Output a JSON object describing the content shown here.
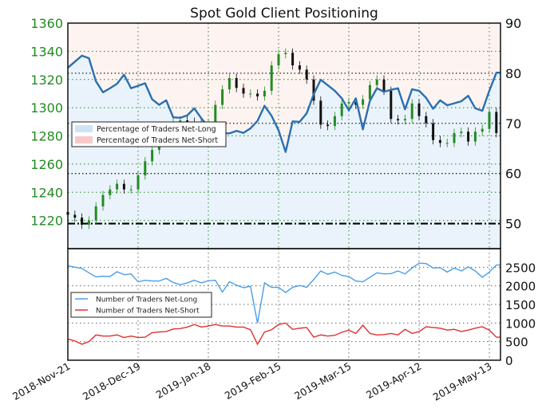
{
  "chart_data": [
    {
      "panel": "top",
      "type": "line+candlestick",
      "title": "Spot Gold Client Positioning",
      "x_tick_labels": [
        "2018-Nov-21",
        "2018-Dec-19",
        "2019-Jan-18",
        "2019-Feb-15",
        "2019-Mar-15",
        "2019-Apr-12",
        "2019-May-13"
      ],
      "x_tick_every_n_samples": 10,
      "sample_interval_sessions": 2,
      "left_axis": {
        "ticks": [
          1220,
          1240,
          1260,
          1280,
          1300,
          1320,
          1340,
          1360
        ],
        "ylim": [
          1200,
          1360
        ],
        "color": "#228b22"
      },
      "right_axis": {
        "ticks": [
          50,
          60,
          70,
          80,
          90
        ],
        "ylim": [
          45,
          90
        ]
      },
      "reference_lines_right_axis": [
        60,
        70,
        80
      ],
      "baseline_right_axis": 50,
      "legend": {
        "placement": "center-left",
        "entries": [
          {
            "label": "Percentage of Traders Net-Long",
            "color": "#cfe3f7"
          },
          {
            "label": "Percentage of Traders Net-Short",
            "color": "#f7c9c9"
          }
        ]
      },
      "percent_net_long": [
        81.1,
        82.3,
        83.5,
        83.0,
        78.4,
        76.2,
        77.0,
        77.9,
        79.7,
        77.0,
        77.5,
        78.0,
        74.8,
        73.7,
        74.6,
        71.2,
        71.1,
        71.6,
        73.0,
        71.0,
        69.4,
        68.5,
        68.0,
        68.0,
        68.5,
        68.1,
        69.0,
        70.5,
        73.5,
        71.5,
        68.6,
        64.3,
        70.4,
        70.3,
        72.0,
        75.8,
        78.7,
        77.6,
        76.5,
        75.0,
        72.6,
        75.0,
        68.8,
        74.5,
        77.0,
        76.3,
        76.7,
        77.0,
        72.8,
        76.8,
        76.5,
        75.1,
        72.9,
        74.6,
        73.6,
        74.0,
        74.4,
        75.5,
        73.0,
        72.5,
        76.5,
        80.1
      ],
      "price_close": [
        1224,
        1222,
        1217,
        1220,
        1230,
        1238,
        1242,
        1246,
        1242,
        1242,
        1252,
        1262,
        1270,
        1276,
        1285,
        1290,
        1291,
        1290,
        1289,
        1288,
        1289,
        1302,
        1313,
        1321,
        1314,
        1310,
        1310,
        1308,
        1312,
        1330,
        1338,
        1339,
        1330,
        1327,
        1320,
        1305,
        1288,
        1287,
        1294,
        1303,
        1304,
        1302,
        1306,
        1316,
        1320,
        1312,
        1292,
        1291,
        1292,
        1303,
        1294,
        1289,
        1277,
        1275,
        1275,
        1282,
        1283,
        1276,
        1283,
        1285,
        1297,
        1282
      ],
      "colors": {
        "line": "#2a6fb0",
        "up": "#228b22",
        "down": "#111111",
        "net_long_fill": "#eaf3fb",
        "net_short_fill": "#fdf3f1"
      }
    },
    {
      "panel": "bottom",
      "type": "line",
      "right_axis": {
        "ticks": [
          0,
          500,
          1000,
          1500,
          2000,
          2500
        ],
        "ylim": [
          0,
          3000
        ]
      },
      "legend": {
        "placement": "center-left"
      },
      "series": [
        {
          "name": "Number of Traders Net-Long",
          "color": "#4a9ee8",
          "values": [
            2540,
            2500,
            2470,
            2350,
            2240,
            2260,
            2250,
            2380,
            2300,
            2320,
            2110,
            2150,
            2130,
            2130,
            2200,
            2090,
            2030,
            2080,
            2150,
            2080,
            2140,
            2150,
            1830,
            2110,
            2020,
            1950,
            1990,
            1000,
            2080,
            1960,
            1960,
            1820,
            1960,
            2010,
            1960,
            2170,
            2400,
            2310,
            2370,
            2280,
            2250,
            2130,
            2110,
            2230,
            2350,
            2320,
            2330,
            2400,
            2320,
            2480,
            2610,
            2600,
            2480,
            2490,
            2370,
            2480,
            2400,
            2510,
            2400,
            2230,
            2370,
            2560
          ]
        },
        {
          "name": "Number of Traders Net-Short",
          "color": "#e03030",
          "values": [
            570,
            520,
            430,
            500,
            680,
            650,
            650,
            680,
            610,
            650,
            610,
            620,
            740,
            760,
            770,
            840,
            850,
            890,
            960,
            890,
            920,
            960,
            920,
            920,
            890,
            890,
            820,
            430,
            760,
            820,
            960,
            1000,
            830,
            860,
            880,
            620,
            680,
            650,
            670,
            750,
            810,
            720,
            940,
            720,
            680,
            690,
            720,
            680,
            830,
            720,
            770,
            900,
            880,
            860,
            810,
            830,
            770,
            810,
            860,
            900,
            810,
            620
          ]
        }
      ]
    }
  ]
}
